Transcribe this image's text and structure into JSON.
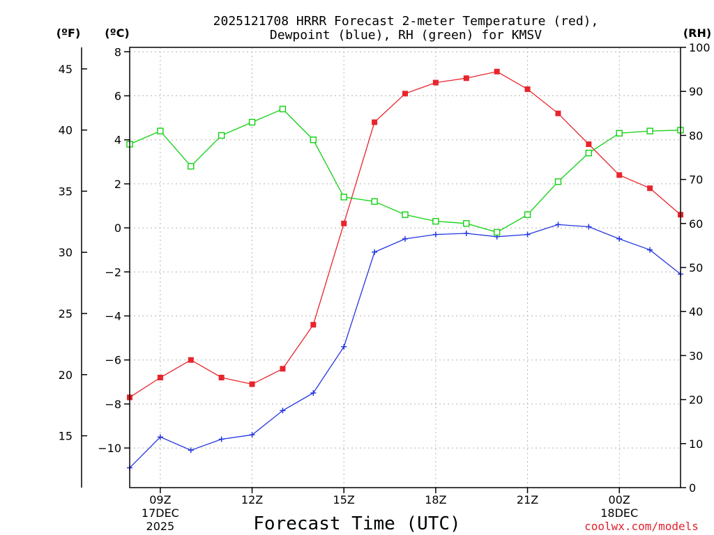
{
  "chart_data": {
    "type": "line",
    "title_line1": "2025121708 HRRR Forecast 2-meter Temperature (red),",
    "title_line2": "Dewpoint (blue), RH (green) for KMSV",
    "xlabel": "Forecast Time (UTC)",
    "unit_f": "(ºF)",
    "unit_c": "(ºC)",
    "unit_rh": "(RH)",
    "credit": "coolwx.com/models",
    "x_hours": [
      0,
      1,
      2,
      3,
      4,
      5,
      6,
      7,
      8,
      9,
      10,
      11,
      12,
      13,
      14,
      15,
      16,
      17,
      18
    ],
    "x_range": [
      0,
      18
    ],
    "x_ticks": [
      {
        "hour": 1,
        "label": "09Z",
        "sub1": "17DEC",
        "sub2": "2025"
      },
      {
        "hour": 4,
        "label": "12Z",
        "sub1": "",
        "sub2": ""
      },
      {
        "hour": 7,
        "label": "15Z",
        "sub1": "",
        "sub2": ""
      },
      {
        "hour": 10,
        "label": "18Z",
        "sub1": "",
        "sub2": ""
      },
      {
        "hour": 13,
        "label": "21Z",
        "sub1": "",
        "sub2": ""
      },
      {
        "hour": 16,
        "label": "00Z",
        "sub1": "18DEC",
        "sub2": ""
      }
    ],
    "c_range": [
      -11.8,
      8.2
    ],
    "c_ticks": [
      "−10",
      "−8",
      "−6",
      "−4",
      "−2",
      "0",
      "2",
      "4",
      "6",
      "8"
    ],
    "c_tick_values": [
      -10,
      -8,
      -6,
      -4,
      -2,
      0,
      2,
      4,
      6,
      8
    ],
    "f_ticks": [
      "15",
      "20",
      "25",
      "30",
      "35",
      "40",
      "45"
    ],
    "f_tick_values": [
      15,
      20,
      25,
      30,
      35,
      40,
      45
    ],
    "rh_range": [
      0,
      100
    ],
    "rh_ticks": [
      "0",
      "10",
      "20",
      "30",
      "40",
      "50",
      "60",
      "70",
      "80",
      "90",
      "100"
    ],
    "rh_tick_values": [
      0,
      10,
      20,
      30,
      40,
      50,
      60,
      70,
      80,
      90,
      100
    ],
    "series": [
      {
        "name": "Temperature",
        "unit": "C",
        "color": "#e8242c",
        "marker": "filled-square",
        "values": [
          -7.7,
          -6.8,
          -6.0,
          -6.8,
          -7.1,
          -6.4,
          -4.4,
          0.2,
          4.8,
          6.1,
          6.6,
          6.8,
          7.1,
          6.3,
          5.2,
          3.8,
          2.4,
          1.8,
          0.6
        ]
      },
      {
        "name": "Dewpoint",
        "unit": "C",
        "color": "#2436e0",
        "marker": "plus",
        "values": [
          -10.9,
          -9.5,
          -10.1,
          -9.6,
          -9.4,
          -8.3,
          -7.5,
          -5.4,
          -1.1,
          -0.5,
          -0.3,
          -0.25,
          -0.4,
          -0.3,
          0.15,
          0.05,
          -0.5,
          -1.0,
          -2.1
        ]
      },
      {
        "name": "RH",
        "unit": "%",
        "color": "#10d010",
        "marker": "open-square",
        "values": [
          78,
          81,
          73,
          80,
          83,
          86,
          79,
          66,
          65,
          62,
          60.5,
          60,
          58,
          62,
          69.5,
          76,
          80.5,
          81,
          81.2
        ]
      }
    ]
  }
}
